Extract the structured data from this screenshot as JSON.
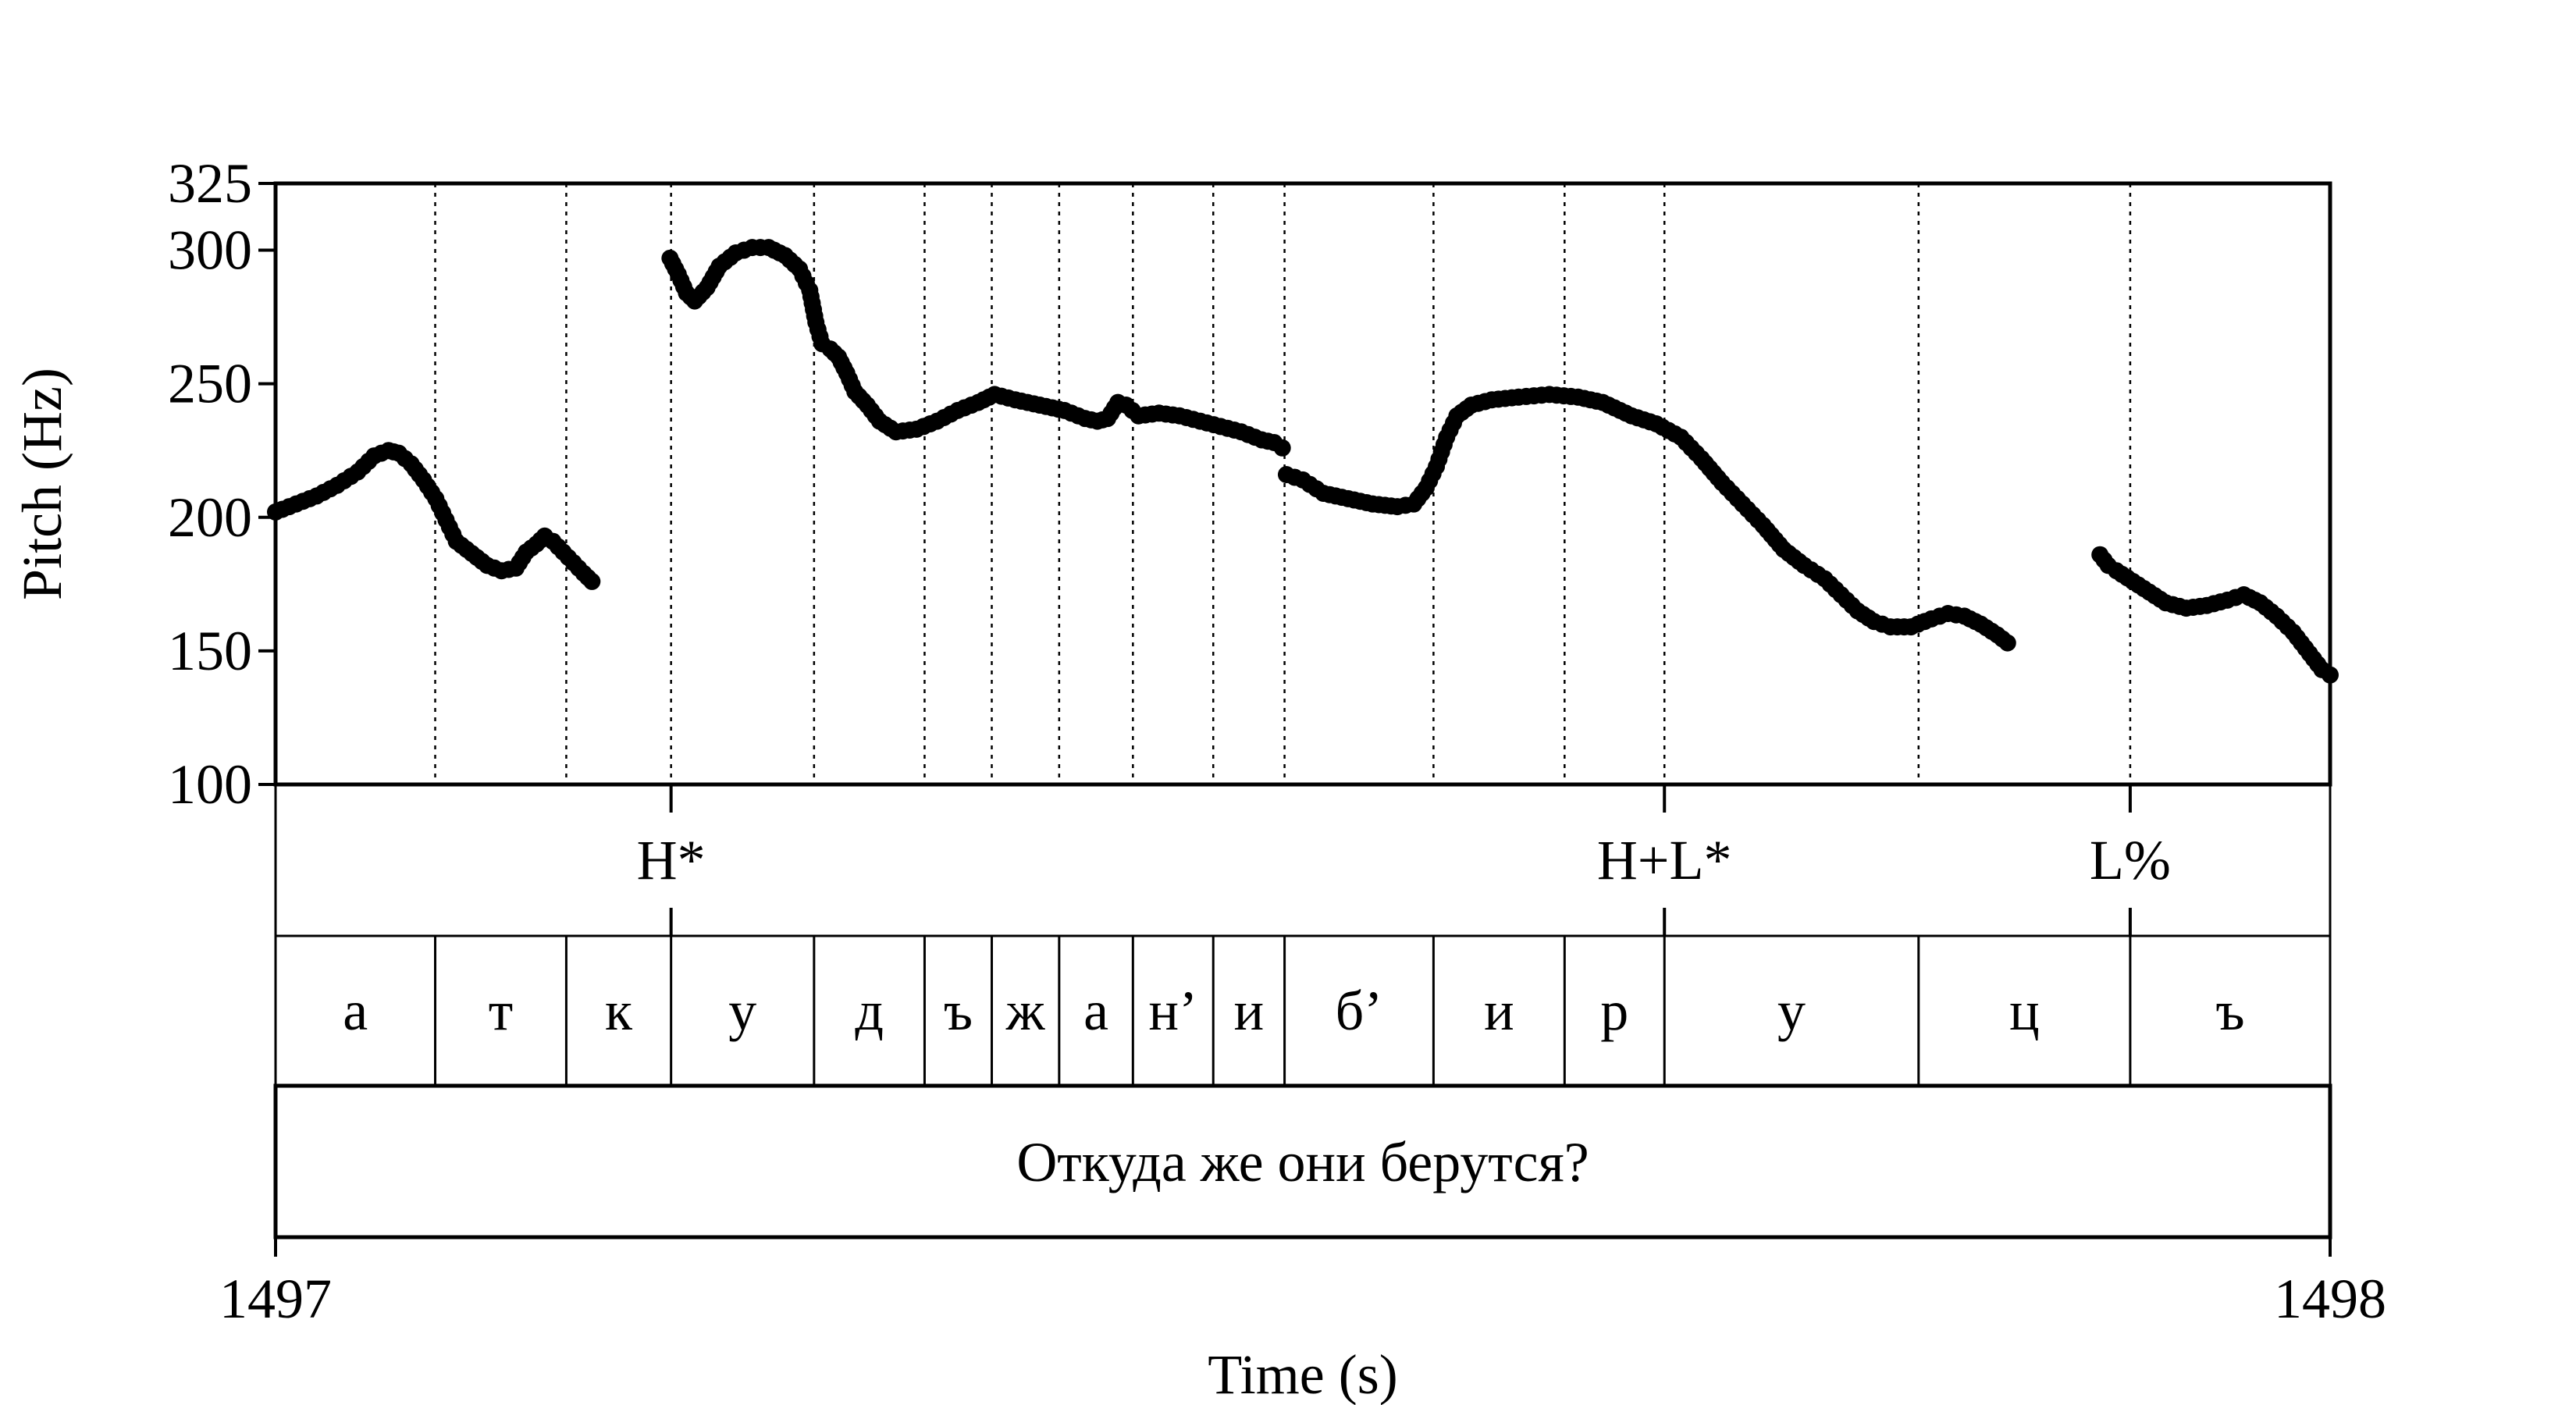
{
  "chart_data": {
    "type": "scatter",
    "xlabel": "Time (s)",
    "ylabel": "Pitch (Hz)",
    "xlim": [
      1497,
      1498
    ],
    "ylim": [
      100,
      325
    ],
    "x_ticks": [
      "1497",
      "1498"
    ],
    "y_ticks": [
      "100",
      "150",
      "200",
      "250",
      "300",
      "325"
    ],
    "y_tick_values": [
      100,
      150,
      200,
      250,
      300,
      325
    ],
    "boundaries": [
      1497.0777,
      1497.1415,
      1497.1925,
      1497.2621,
      1497.3159,
      1497.3486,
      1497.3814,
      1497.4173,
      1497.4564,
      1497.4911,
      1497.5636,
      1497.6274,
      1497.676,
      1497.7997,
      1497.9027
    ],
    "tones": [
      {
        "label": "H*",
        "time": 1497.1925
      },
      {
        "label": "H+L*",
        "time": 1497.676
      },
      {
        "label": "L%",
        "time": 1497.9027
      }
    ],
    "segments": [
      {
        "label": "а",
        "start": 1497.0,
        "end": 1497.0777
      },
      {
        "label": "т",
        "start": 1497.0777,
        "end": 1497.1415
      },
      {
        "label": "к",
        "start": 1497.1415,
        "end": 1497.1925
      },
      {
        "label": "у",
        "start": 1497.1925,
        "end": 1497.2621
      },
      {
        "label": "д",
        "start": 1497.2621,
        "end": 1497.3159
      },
      {
        "label": "ъ",
        "start": 1497.3159,
        "end": 1497.3486
      },
      {
        "label": "ж",
        "start": 1497.3486,
        "end": 1497.3814
      },
      {
        "label": "а",
        "start": 1497.3814,
        "end": 1497.4173
      },
      {
        "label": "н’",
        "start": 1497.4173,
        "end": 1497.4564
      },
      {
        "label": "и",
        "start": 1497.4564,
        "end": 1497.4911
      },
      {
        "label": "б’",
        "start": 1497.4911,
        "end": 1497.5636
      },
      {
        "label": "и",
        "start": 1497.5636,
        "end": 1497.6274
      },
      {
        "label": "р",
        "start": 1497.6274,
        "end": 1497.676
      },
      {
        "label": "у",
        "start": 1497.676,
        "end": 1497.7997
      },
      {
        "label": "ц",
        "start": 1497.7997,
        "end": 1497.9027
      },
      {
        "label": "ъ",
        "start": 1497.9027,
        "end": 1498.0
      }
    ],
    "sentence": "Откуда же они берутся?",
    "series": [
      {
        "points": [
          [
            1497.0,
            202
          ],
          [
            1497.01,
            205
          ],
          [
            1497.02,
            208
          ],
          [
            1497.03,
            212
          ],
          [
            1497.04,
            217
          ],
          [
            1497.048,
            223
          ],
          [
            1497.055,
            225
          ],
          [
            1497.06,
            224
          ],
          [
            1497.066,
            220
          ],
          [
            1497.072,
            214
          ],
          [
            1497.078,
            207
          ],
          [
            1497.083,
            199
          ],
          [
            1497.088,
            191
          ],
          [
            1497.093,
            188
          ],
          [
            1497.098,
            185
          ],
          [
            1497.103,
            182
          ],
          [
            1497.11,
            180
          ],
          [
            1497.117,
            181
          ],
          [
            1497.122,
            187
          ],
          [
            1497.127,
            190
          ],
          [
            1497.131,
            193
          ],
          [
            1497.135,
            191
          ],
          [
            1497.14,
            187
          ],
          [
            1497.145,
            183
          ],
          [
            1497.15,
            179
          ],
          [
            1497.154,
            176
          ]
        ]
      },
      {
        "points": [
          [
            1497.192,
            297
          ],
          [
            1497.196,
            291
          ],
          [
            1497.2,
            284
          ],
          [
            1497.204,
            281
          ],
          [
            1497.21,
            286
          ],
          [
            1497.216,
            294
          ],
          [
            1497.224,
            299
          ],
          [
            1497.232,
            301
          ],
          [
            1497.24,
            301
          ],
          [
            1497.248,
            298
          ],
          [
            1497.255,
            293
          ],
          [
            1497.26,
            285
          ],
          [
            1497.263,
            273
          ],
          [
            1497.266,
            265
          ],
          [
            1497.27,
            263
          ],
          [
            1497.274,
            260
          ],
          [
            1497.278,
            254
          ],
          [
            1497.282,
            247
          ],
          [
            1497.288,
            242
          ],
          [
            1497.294,
            236
          ],
          [
            1497.302,
            232
          ],
          [
            1497.312,
            233
          ],
          [
            1497.322,
            236
          ],
          [
            1497.332,
            240
          ],
          [
            1497.342,
            243
          ],
          [
            1497.35,
            246
          ],
          [
            1497.36,
            244
          ],
          [
            1497.372,
            242
          ],
          [
            1497.384,
            240
          ],
          [
            1497.394,
            237
          ],
          [
            1497.4,
            236
          ],
          [
            1497.405,
            237
          ],
          [
            1497.41,
            243
          ],
          [
            1497.414,
            242
          ],
          [
            1497.42,
            238
          ],
          [
            1497.43,
            239
          ],
          [
            1497.44,
            238
          ],
          [
            1497.45,
            236
          ],
          [
            1497.46,
            234
          ],
          [
            1497.47,
            232
          ],
          [
            1497.48,
            229
          ],
          [
            1497.486,
            228
          ],
          [
            1497.49,
            226
          ]
        ]
      },
      {
        "points": [
          [
            1497.492,
            216
          ],
          [
            1497.5,
            214
          ],
          [
            1497.51,
            209
          ],
          [
            1497.522,
            207
          ],
          [
            1497.534,
            205
          ],
          [
            1497.546,
            204
          ],
          [
            1497.554,
            205
          ],
          [
            1497.56,
            211
          ],
          [
            1497.565,
            219
          ],
          [
            1497.57,
            230
          ],
          [
            1497.575,
            238
          ],
          [
            1497.582,
            242
          ],
          [
            1497.592,
            244
          ],
          [
            1497.605,
            245
          ],
          [
            1497.62,
            246
          ],
          [
            1497.634,
            245
          ],
          [
            1497.646,
            243
          ],
          [
            1497.66,
            238
          ],
          [
            1497.672,
            235
          ],
          [
            1497.684,
            230
          ],
          [
            1497.694,
            222
          ],
          [
            1497.704,
            213
          ],
          [
            1497.714,
            205
          ],
          [
            1497.724,
            197
          ],
          [
            1497.734,
            188
          ],
          [
            1497.744,
            182
          ],
          [
            1497.754,
            177
          ],
          [
            1497.762,
            171
          ],
          [
            1497.77,
            165
          ],
          [
            1497.778,
            161
          ],
          [
            1497.786,
            159
          ],
          [
            1497.796,
            159
          ],
          [
            1497.806,
            162
          ],
          [
            1497.814,
            164
          ],
          [
            1497.822,
            163
          ],
          [
            1497.83,
            160
          ],
          [
            1497.838,
            156
          ],
          [
            1497.843,
            153
          ]
        ]
      },
      {
        "points": [
          [
            1497.888,
            186
          ],
          [
            1497.892,
            182
          ],
          [
            1497.896,
            180
          ],
          [
            1497.904,
            176
          ],
          [
            1497.912,
            172
          ],
          [
            1497.92,
            168
          ],
          [
            1497.93,
            166
          ],
          [
            1497.94,
            167
          ],
          [
            1497.95,
            169
          ],
          [
            1497.958,
            171
          ],
          [
            1497.966,
            168
          ],
          [
            1497.974,
            163
          ],
          [
            1497.982,
            157
          ],
          [
            1497.99,
            149
          ],
          [
            1497.996,
            143
          ],
          [
            1498.0,
            141
          ]
        ]
      }
    ]
  }
}
